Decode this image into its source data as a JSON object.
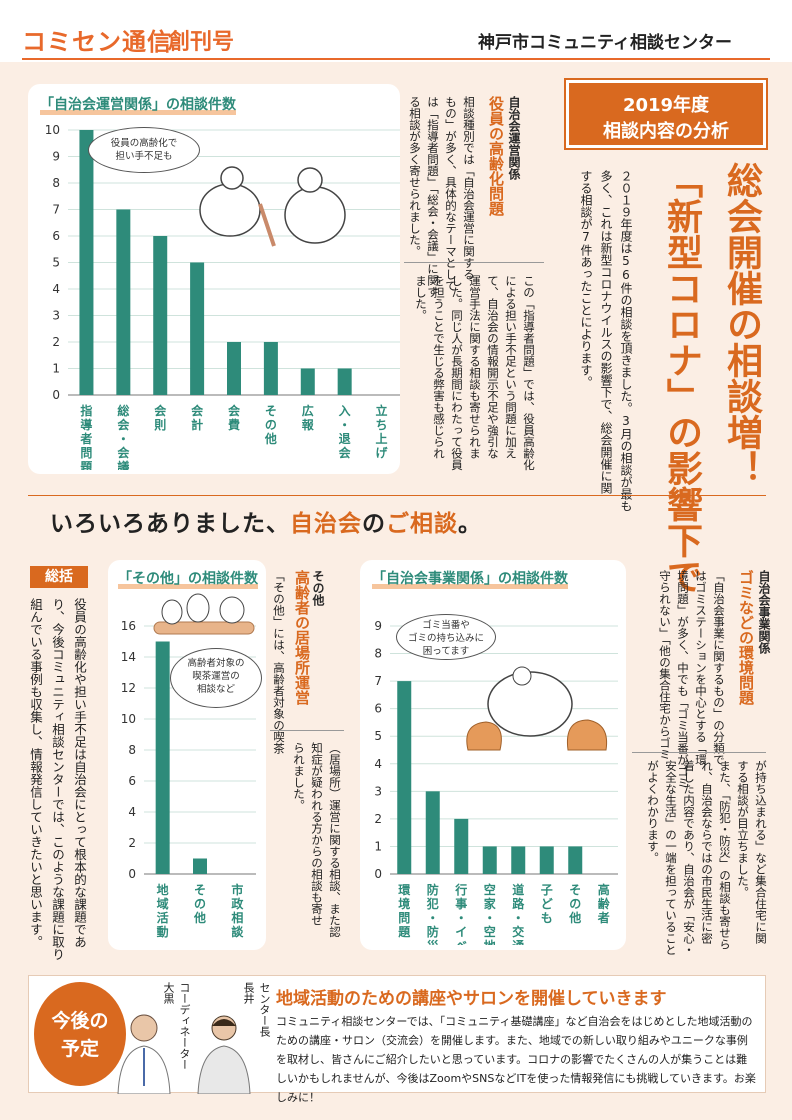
{
  "header": {
    "newsletter_title": "コミセン通信",
    "issue": "創刊号",
    "organization": "神戸市コミュニティ相談センター"
  },
  "analysis": {
    "year": "2019年度",
    "title": "相談内容の分析",
    "headline_1": "総会開催の相談増！",
    "headline_2": "「新型コロナ」の影響下で",
    "intro_lines": [
      "２０１９年度は56件の相談を頂きました。3月の相談が最も",
      "多く、これは新型コロナウイルスの影響下で、総会開催に関",
      "する相談が7件あったことによります。"
    ]
  },
  "section_org": {
    "subhead": "自治会運営関係",
    "head": "役員の高齢化問題",
    "body_1": [
      "相談種別では「自治会運営に関する",
      "もの」が多く、具体的なテーマとして",
      "は「指導者問題」「総会・会議」に関す",
      "る相談が多く寄せられました。"
    ],
    "body_2": [
      "この「指導者問題」では、役員高齢化",
      "による担い手不足という問題に加え",
      "て、自治会の情報開示不足や強引な",
      "運営手法に関する相談も寄せられま",
      "した。同じ人が長期間にわたって役員",
      "を担うことで生じる弊害も感じられ",
      "ました。"
    ]
  },
  "section_env": {
    "subhead": "自治会事業関係",
    "head": "ゴミなどの環境問題",
    "body_1": [
      "「自治会事業に関するもの」の分類で",
      "はゴミステーションを中心とする「環",
      "境問題」が多く、中でも「ゴミ当番がゴミ",
      "守られない」「他の集合住宅からゴミ"
    ],
    "body_2": [
      "が持ち込まれる」など集合住宅に関",
      "する相談が目立ちました。",
      "また、「防犯・防災」の相談も寄せら",
      "れ、自治会ならではの市民生活に密",
      "着した内容であり、自治会が「安心・",
      "安全な生活」の一端を担っていること",
      "がよくわかります。"
    ]
  },
  "section_other": {
    "subhead": "その他",
    "head": "高齢者の居場所運営",
    "body_1": [
      "「その他」には、高齢者対象の喫茶"
    ],
    "body_2": [
      "（居場所）運営に関する相談、また認",
      "知症が疑われる方からの相談も寄せ",
      "られました。"
    ]
  },
  "banner": {
    "prefix": "いろいろありました、",
    "em_1": "自治会",
    "mid": "の",
    "em_2": "ご相談",
    "suffix": "。"
  },
  "summary": {
    "label": "総括",
    "lines": [
      "役員の高齢化や担い手不足は自治会にとって根本的な課題であ",
      "り、今後コミュニティ相談センターでは、このような課題に取り",
      "組んでいる事例も収集し、情報発信していきたいと思います。"
    ]
  },
  "future": {
    "label_1": "今後の",
    "label_2": "予定",
    "person_1_role": "コーディネーター",
    "person_1_name": "大黒",
    "person_2_role": "センター長",
    "person_2_name": "長井",
    "headline": "地域活動のための講座やサロンを開催していきます",
    "body": "コミュニティ相談センターでは、「コミュニティ基礎講座」など自治会をはじめとした地域活動のための講座・サロン（交流会）を開催します。また、地域での新しい取り組みやユニークな事例を取材し、皆さんにご紹介したいと思っています。コロナの影響でたくさんの人が集うことは難しいかもしれませんが、今後はZoomやSNSなどITを使った情報発信にも挑戦していきます。お楽しみに！"
  },
  "illustrations": {
    "bubble_1": [
      "役員の高齢化で",
      "担い手不足も"
    ],
    "bubble_2": [
      "高齢者対象の",
      "喫茶運営の",
      "相談など"
    ],
    "bubble_3": [
      "ゴミ当番や",
      "ゴミの持ち込みに",
      "困ってます"
    ]
  },
  "chart_data": [
    {
      "type": "bar",
      "title": "「自治会運営関係」の相談件数",
      "categories": [
        "指導者問題",
        "総会・会議",
        "会則",
        "会計",
        "会費",
        "その他",
        "広報",
        "入・退会",
        "立ち上げ"
      ],
      "values": [
        10,
        7,
        6,
        5,
        2,
        2,
        1,
        1,
        0
      ],
      "yticks": [
        0,
        1,
        2,
        3,
        4,
        5,
        6,
        7,
        8,
        9,
        10
      ],
      "ylim": [
        0,
        10
      ],
      "color": "#2e8b7a",
      "grid": true
    },
    {
      "type": "bar",
      "title": "「その他」の相談件数",
      "categories": [
        "地域活動",
        "その他",
        "市政相談"
      ],
      "values": [
        15,
        1,
        0
      ],
      "yticks": [
        0,
        2,
        4,
        6,
        8,
        10,
        12,
        14,
        16
      ],
      "ylim": [
        0,
        16
      ],
      "color": "#2e8b7a",
      "grid": true
    },
    {
      "type": "bar",
      "title": "「自治会事業関係」の相談件数",
      "categories": [
        "環境問題",
        "防犯・防災",
        "行事・イベント",
        "空家・空地",
        "道路・交通",
        "子ども",
        "その他",
        "高齢者"
      ],
      "values": [
        7,
        3,
        2,
        1,
        1,
        1,
        1,
        0
      ],
      "yticks": [
        0,
        1,
        2,
        3,
        4,
        5,
        6,
        7,
        8,
        9
      ],
      "ylim": [
        0,
        9
      ],
      "color": "#2e8b7a",
      "grid": true
    }
  ]
}
